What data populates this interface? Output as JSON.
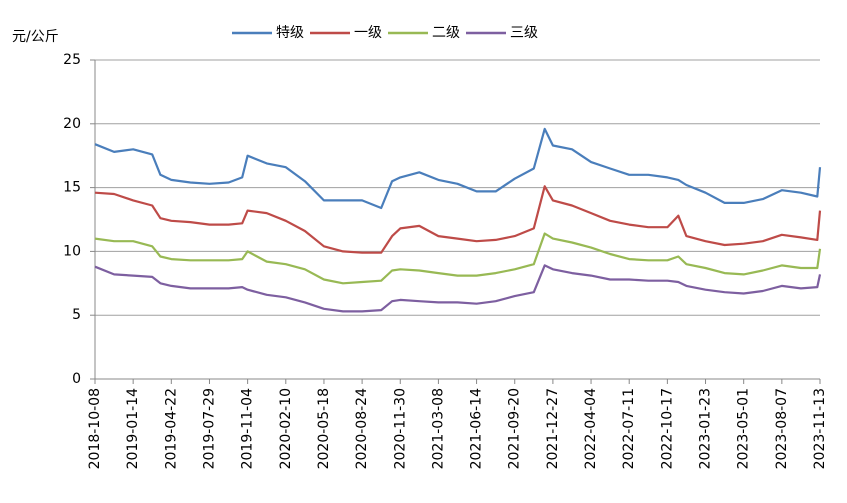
{
  "chart_data": {
    "type": "line",
    "y_label": "元/公斤",
    "x": [
      "2018-10-08",
      "2018-11-26",
      "2019-01-14",
      "2019-03-04",
      "2019-03-25",
      "2019-04-22",
      "2019-06-10",
      "2019-07-29",
      "2019-09-16",
      "2019-10-21",
      "2019-11-04",
      "2019-12-23",
      "2020-02-10",
      "2020-03-30",
      "2020-05-18",
      "2020-07-06",
      "2020-08-24",
      "2020-10-12",
      "2020-11-09",
      "2020-11-30",
      "2021-01-18",
      "2021-03-08",
      "2021-04-26",
      "2021-06-14",
      "2021-08-02",
      "2021-09-20",
      "2021-11-08",
      "2021-12-06",
      "2021-12-27",
      "2022-02-14",
      "2022-04-04",
      "2022-05-23",
      "2022-07-11",
      "2022-08-29",
      "2022-10-17",
      "2022-11-14",
      "2022-12-05",
      "2023-01-23",
      "2023-03-13",
      "2023-05-01",
      "2023-06-19",
      "2023-08-07",
      "2023-09-25",
      "2023-11-06",
      "2023-11-13"
    ],
    "series": [
      {
        "name": "特级",
        "color": "#4a7ebb",
        "values": [
          18.4,
          17.8,
          18.0,
          17.6,
          16.0,
          15.6,
          15.4,
          15.3,
          15.4,
          15.8,
          17.5,
          16.9,
          16.6,
          15.5,
          14.0,
          14.0,
          14.0,
          13.4,
          15.5,
          15.8,
          16.2,
          15.6,
          15.3,
          14.7,
          14.7,
          15.7,
          16.5,
          19.6,
          18.3,
          18.0,
          17.0,
          16.5,
          16.0,
          16.0,
          15.8,
          15.6,
          15.2,
          14.6,
          13.8,
          13.8,
          14.1,
          14.8,
          14.6,
          14.3,
          16.6
        ]
      },
      {
        "name": "一级",
        "color": "#be4b48",
        "values": [
          14.6,
          14.5,
          14.0,
          13.6,
          12.6,
          12.4,
          12.3,
          12.1,
          12.1,
          12.2,
          13.2,
          13.0,
          12.4,
          11.6,
          10.4,
          10.0,
          9.9,
          9.9,
          11.2,
          11.8,
          12.0,
          11.2,
          11.0,
          10.8,
          10.9,
          11.2,
          11.8,
          15.1,
          14.0,
          13.6,
          13.0,
          12.4,
          12.1,
          11.9,
          11.9,
          12.8,
          11.2,
          10.8,
          10.5,
          10.6,
          10.8,
          11.3,
          11.1,
          10.9,
          13.2
        ]
      },
      {
        "name": "二级",
        "color": "#98b954",
        "values": [
          11.0,
          10.8,
          10.8,
          10.4,
          9.6,
          9.4,
          9.3,
          9.3,
          9.3,
          9.4,
          10.0,
          9.2,
          9.0,
          8.6,
          7.8,
          7.5,
          7.6,
          7.7,
          8.5,
          8.6,
          8.5,
          8.3,
          8.1,
          8.1,
          8.3,
          8.6,
          9.0,
          11.4,
          11.0,
          10.7,
          10.3,
          9.8,
          9.4,
          9.3,
          9.3,
          9.6,
          9.0,
          8.7,
          8.3,
          8.2,
          8.5,
          8.9,
          8.7,
          8.7,
          10.2
        ]
      },
      {
        "name": "三级",
        "color": "#7d5fa0",
        "values": [
          8.8,
          8.2,
          8.1,
          8.0,
          7.5,
          7.3,
          7.1,
          7.1,
          7.1,
          7.2,
          7.0,
          6.6,
          6.4,
          6.0,
          5.5,
          5.3,
          5.3,
          5.4,
          6.1,
          6.2,
          6.1,
          6.0,
          6.0,
          5.9,
          6.1,
          6.5,
          6.8,
          8.9,
          8.6,
          8.3,
          8.1,
          7.8,
          7.8,
          7.7,
          7.7,
          7.6,
          7.3,
          7.0,
          6.8,
          6.7,
          6.9,
          7.3,
          7.1,
          7.2,
          8.2
        ]
      }
    ],
    "xlim": [
      "2018-10-08",
      "2023-11-13"
    ],
    "xticks": [
      "2018-10-08",
      "2019-01-14",
      "2019-04-22",
      "2019-07-29",
      "2019-11-04",
      "2020-02-10",
      "2020-05-18",
      "2020-08-24",
      "2020-11-30",
      "2021-03-08",
      "2021-06-14",
      "2021-09-20",
      "2021-12-27",
      "2022-04-04",
      "2022-07-11",
      "2022-10-17",
      "2023-01-23",
      "2023-05-01",
      "2023-08-07",
      "2023-11-13"
    ],
    "ylim": [
      0,
      25
    ],
    "yticks": [
      0,
      5,
      10,
      15,
      20,
      25
    ],
    "grid": true,
    "legend": "top"
  }
}
